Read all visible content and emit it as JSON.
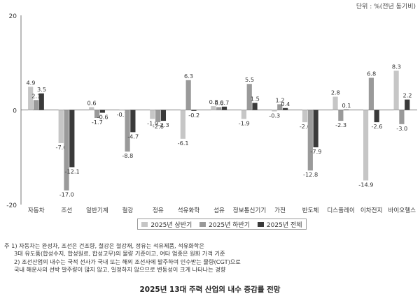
{
  "chart_data": {
    "type": "bar",
    "unit_label": "단위 : %(전년 동기비)",
    "categories": [
      "자동차",
      "조선",
      "일반기계",
      "철강",
      "정유",
      "석유화학",
      "섬유",
      "정보통신기기",
      "가전",
      "반도체",
      "디스플레이",
      "이차전지",
      "바이오헬스"
    ],
    "series": [
      {
        "name": "2025년 상반기",
        "color": "#c6c6c6",
        "values": [
          4.9,
          -7.0,
          0.6,
          -0.1,
          -1.9,
          -6.1,
          0.8,
          -1.9,
          -0.3,
          -2.6,
          2.8,
          -14.9,
          8.3
        ]
      },
      {
        "name": "2025년 하반기",
        "color": "#9a9a9a",
        "values": [
          2.1,
          -17.0,
          -1.7,
          -8.8,
          -2.6,
          6.3,
          0.6,
          5.5,
          1.2,
          -12.8,
          -2.3,
          6.8,
          -3.0
        ]
      },
      {
        "name": "2025년 전체",
        "color": "#3a3a3a",
        "values": [
          3.5,
          -12.1,
          -0.6,
          -4.7,
          -2.3,
          -0.2,
          0.7,
          1.5,
          0.4,
          -7.9,
          0.1,
          -2.6,
          2.2
        ]
      }
    ],
    "yticks": [
      20,
      0,
      -20
    ],
    "ylim": [
      -20,
      20
    ],
    "grid": false,
    "legend_position": "bottom"
  },
  "notes": [
    "주 1) 자동차는 완성차, 조선은 건조량, 철강은 철강재, 정유는 석유제품, 석유화학은",
    "3대 유도품(합성수지, 합성원료, 합성고무)의 물량 기준이고, 여타 업종은 원화 가격 기준",
    "2) 조선산업의 내수는 국적 선사가 국내 또는 해외 조선사에 발주하여 인수받는 물량(CGT)으로",
    "국내 해운사의 선박 발주량이 많지 않고, 일정하지 않으므로 변동성이 크게 나타나는 경향"
  ],
  "caption": "2025년 13대 주력 산업의 내수 증감률 전망"
}
